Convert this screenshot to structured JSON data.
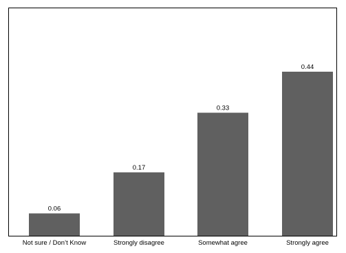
{
  "chart_data": {
    "type": "bar",
    "categories": [
      "Not sure / Don’t Know",
      "Strongly disagree",
      "Somewhat agree",
      "Strongly agree"
    ],
    "values": [
      0.06,
      0.17,
      0.33,
      0.44
    ],
    "data_labels": [
      "0.06",
      "0.17",
      "0.33",
      "0.44"
    ],
    "title": "",
    "xlabel": "",
    "ylabel": "",
    "ylim": [
      0,
      0.55
    ],
    "grid": false,
    "bar_color": "#606060"
  }
}
